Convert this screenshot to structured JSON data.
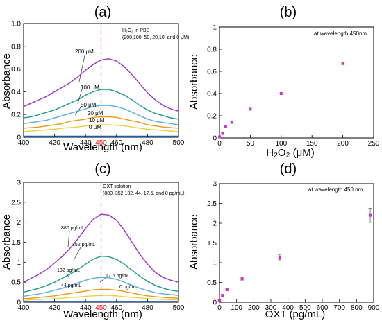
{
  "chart_data": [
    {
      "panel": "(a)",
      "type": "line",
      "xlabel": "Wavelength (nm)",
      "ylabel": "Absorbance",
      "xlim": [
        400,
        500
      ],
      "ylim": [
        0,
        1.0
      ],
      "xticks": [
        "400",
        "420",
        "440",
        "450",
        "460",
        "480",
        "500"
      ],
      "yticks": [
        "0",
        "0.2",
        "0.4",
        "0.6",
        "0.8",
        "1.0"
      ],
      "highlight_tick": "450",
      "marker_line_x": 450,
      "annotation_lines": [
        "H₂O₂ in PBS",
        "(200,100, 50, 20,10, and 0 μM)"
      ],
      "series": [
        {
          "name": "200 μM",
          "color": "#9b30d0",
          "x": [
            400,
            405,
            410,
            415,
            420,
            425,
            430,
            435,
            440,
            445,
            450,
            455,
            460,
            465,
            470,
            475,
            480,
            485,
            490,
            495,
            500
          ],
          "y": [
            0.27,
            0.3,
            0.33,
            0.36,
            0.4,
            0.44,
            0.48,
            0.53,
            0.59,
            0.64,
            0.68,
            0.69,
            0.67,
            0.62,
            0.55,
            0.47,
            0.39,
            0.33,
            0.28,
            0.25,
            0.23
          ]
        },
        {
          "name": "100 μM",
          "color": "#1a9e86",
          "x": [
            400,
            405,
            410,
            415,
            420,
            425,
            430,
            435,
            440,
            445,
            450,
            455,
            460,
            465,
            470,
            475,
            480,
            485,
            490,
            495,
            500
          ],
          "y": [
            0.17,
            0.18,
            0.2,
            0.22,
            0.24,
            0.27,
            0.3,
            0.33,
            0.37,
            0.4,
            0.42,
            0.42,
            0.4,
            0.37,
            0.33,
            0.28,
            0.24,
            0.21,
            0.19,
            0.17,
            0.16
          ]
        },
        {
          "name": "50 μM",
          "color": "#5aaee8",
          "x": [
            400,
            405,
            410,
            415,
            420,
            425,
            430,
            435,
            440,
            445,
            450,
            455,
            460,
            465,
            470,
            475,
            480,
            485,
            490,
            495,
            500
          ],
          "y": [
            0.12,
            0.13,
            0.14,
            0.15,
            0.17,
            0.19,
            0.21,
            0.23,
            0.25,
            0.27,
            0.28,
            0.28,
            0.27,
            0.25,
            0.22,
            0.19,
            0.16,
            0.14,
            0.13,
            0.12,
            0.11
          ]
        },
        {
          "name": "20 μM",
          "color": "#e89a1a",
          "x": [
            400,
            405,
            410,
            415,
            420,
            425,
            430,
            435,
            440,
            445,
            450,
            455,
            460,
            465,
            470,
            475,
            480,
            485,
            490,
            495,
            500
          ],
          "y": [
            0.08,
            0.085,
            0.09,
            0.1,
            0.11,
            0.12,
            0.14,
            0.15,
            0.16,
            0.175,
            0.18,
            0.18,
            0.175,
            0.16,
            0.145,
            0.13,
            0.11,
            0.1,
            0.09,
            0.085,
            0.08
          ]
        },
        {
          "name": "10 μM",
          "color": "#f0d040",
          "x": [
            400,
            405,
            410,
            415,
            420,
            425,
            430,
            435,
            440,
            445,
            450,
            455,
            460,
            465,
            470,
            475,
            480,
            485,
            490,
            495,
            500
          ],
          "y": [
            0.05,
            0.055,
            0.06,
            0.065,
            0.07,
            0.08,
            0.085,
            0.09,
            0.1,
            0.105,
            0.11,
            0.11,
            0.105,
            0.1,
            0.09,
            0.08,
            0.07,
            0.065,
            0.06,
            0.055,
            0.05
          ]
        },
        {
          "name": "0 μM",
          "color": "#1a5ab0",
          "x": [
            400,
            405,
            410,
            415,
            420,
            425,
            430,
            435,
            440,
            445,
            450,
            455,
            460,
            465,
            470,
            475,
            480,
            485,
            490,
            495,
            500
          ],
          "y": [
            0.01,
            0.01,
            0.01,
            0.01,
            0.01,
            0.01,
            0.01,
            0.01,
            0.01,
            0.01,
            0.01,
            0.01,
            0.01,
            0.01,
            0.01,
            0.01,
            0.01,
            0.01,
            0.01,
            0.01,
            0.01
          ]
        }
      ]
    },
    {
      "panel": "(b)",
      "type": "scatter",
      "xlabel": "H₂O₂ (μM)",
      "ylabel": "Absorbance",
      "xlim": [
        0,
        250
      ],
      "ylim": [
        0,
        1
      ],
      "xticks": [
        "0",
        "50",
        "100",
        "150",
        "200",
        "250"
      ],
      "yticks": [
        "0",
        "0.2",
        "0.4",
        "0.6",
        "0.8",
        "1"
      ],
      "annotation": "at wavelength 450nm",
      "color": "#cc33cc",
      "points": [
        {
          "x": 0,
          "y": 0.01
        },
        {
          "x": 5,
          "y": 0.04
        },
        {
          "x": 10,
          "y": 0.1
        },
        {
          "x": 20,
          "y": 0.14
        },
        {
          "x": 50,
          "y": 0.26
        },
        {
          "x": 100,
          "y": 0.4
        },
        {
          "x": 200,
          "y": 0.67
        }
      ]
    },
    {
      "panel": "(c)",
      "type": "line",
      "xlabel": "Wavelength (nm)",
      "ylabel": "Absorbance",
      "xlim": [
        400,
        500
      ],
      "ylim": [
        0,
        3
      ],
      "xticks": [
        "400",
        "420",
        "440",
        "450",
        "460",
        "480",
        "500"
      ],
      "yticks": [
        "0",
        "0.5",
        "1",
        "1.5",
        "2",
        "2.5",
        "3"
      ],
      "highlight_tick": "450",
      "marker_line_x": 450,
      "annotation_lines": [
        "OXT solution",
        "(880, 352,132, 44, 17.6, and 0 pg/mL)"
      ],
      "series": [
        {
          "name": "880 pg/mL",
          "color": "#9b30d0",
          "x": [
            400,
            405,
            410,
            415,
            420,
            425,
            430,
            435,
            440,
            445,
            450,
            455,
            460,
            465,
            470,
            475,
            480,
            485,
            490,
            495,
            500
          ],
          "y": [
            0.5,
            0.6,
            0.7,
            0.82,
            0.98,
            1.15,
            1.35,
            1.58,
            1.85,
            2.08,
            2.2,
            2.18,
            2.05,
            1.8,
            1.5,
            1.2,
            0.95,
            0.75,
            0.62,
            0.55,
            0.5
          ]
        },
        {
          "name": "352 pg/mL",
          "color": "#1a9e86",
          "x": [
            400,
            405,
            410,
            415,
            420,
            425,
            430,
            435,
            440,
            445,
            450,
            455,
            460,
            465,
            470,
            475,
            480,
            485,
            490,
            495,
            500
          ],
          "y": [
            0.25,
            0.3,
            0.35,
            0.42,
            0.5,
            0.6,
            0.7,
            0.82,
            0.95,
            1.08,
            1.15,
            1.14,
            1.07,
            0.95,
            0.8,
            0.65,
            0.52,
            0.42,
            0.35,
            0.3,
            0.27
          ]
        },
        {
          "name": "132 pg/mL",
          "color": "#5aaee8",
          "x": [
            400,
            405,
            410,
            415,
            420,
            425,
            430,
            435,
            440,
            445,
            450,
            455,
            460,
            465,
            470,
            475,
            480,
            485,
            490,
            495,
            500
          ],
          "y": [
            0.15,
            0.18,
            0.21,
            0.25,
            0.3,
            0.35,
            0.41,
            0.48,
            0.55,
            0.6,
            0.62,
            0.61,
            0.57,
            0.5,
            0.42,
            0.35,
            0.29,
            0.24,
            0.21,
            0.19,
            0.17
          ]
        },
        {
          "name": "44 pg/mL",
          "color": "#e89a1a",
          "x": [
            400,
            405,
            410,
            415,
            420,
            425,
            430,
            435,
            440,
            445,
            450,
            455,
            460,
            465,
            470,
            475,
            480,
            485,
            490,
            495,
            500
          ],
          "y": [
            0.09,
            0.1,
            0.12,
            0.14,
            0.16,
            0.19,
            0.22,
            0.25,
            0.28,
            0.31,
            0.32,
            0.32,
            0.3,
            0.27,
            0.23,
            0.19,
            0.16,
            0.14,
            0.12,
            0.11,
            0.1
          ]
        },
        {
          "name": "17.6 pg/mL",
          "color": "#f0d040",
          "x": [
            400,
            405,
            410,
            415,
            420,
            425,
            430,
            435,
            440,
            445,
            450,
            455,
            460,
            465,
            470,
            475,
            480,
            485,
            490,
            495,
            500
          ],
          "y": [
            0.05,
            0.06,
            0.07,
            0.08,
            0.09,
            0.1,
            0.12,
            0.13,
            0.15,
            0.16,
            0.17,
            0.17,
            0.16,
            0.14,
            0.12,
            0.11,
            0.09,
            0.08,
            0.07,
            0.06,
            0.06
          ]
        },
        {
          "name": "0 pg/mL",
          "color": "#1a5ab0",
          "x": [
            400,
            405,
            410,
            415,
            420,
            425,
            430,
            435,
            440,
            445,
            450,
            455,
            460,
            465,
            470,
            475,
            480,
            485,
            490,
            495,
            500
          ],
          "y": [
            0.02,
            0.02,
            0.02,
            0.02,
            0.02,
            0.02,
            0.02,
            0.02,
            0.02,
            0.02,
            0.02,
            0.02,
            0.02,
            0.02,
            0.02,
            0.02,
            0.02,
            0.02,
            0.02,
            0.02,
            0.02
          ]
        }
      ]
    },
    {
      "panel": "(d)",
      "type": "scatter",
      "xlabel": "OXT (pg/mL)",
      "ylabel": "Absorbance",
      "xlim": [
        0,
        900
      ],
      "ylim": [
        0,
        3
      ],
      "xticks": [
        "0",
        "100",
        "200",
        "300",
        "400",
        "500",
        "600",
        "700",
        "800",
        "900"
      ],
      "yticks": [
        "0",
        "0.5",
        "1",
        "1.5",
        "2",
        "2.5",
        "3"
      ],
      "annotation": "at wavelength 450 nm",
      "color": "#cc33cc",
      "points": [
        {
          "x": 0,
          "y": 0.04,
          "err": 0.02
        },
        {
          "x": 17.6,
          "y": 0.17,
          "err": 0.03
        },
        {
          "x": 44,
          "y": 0.32,
          "err": 0.03
        },
        {
          "x": 132,
          "y": 0.6,
          "err": 0.04
        },
        {
          "x": 352,
          "y": 1.14,
          "err": 0.07
        },
        {
          "x": 880,
          "y": 2.2,
          "err": 0.18
        }
      ]
    }
  ]
}
